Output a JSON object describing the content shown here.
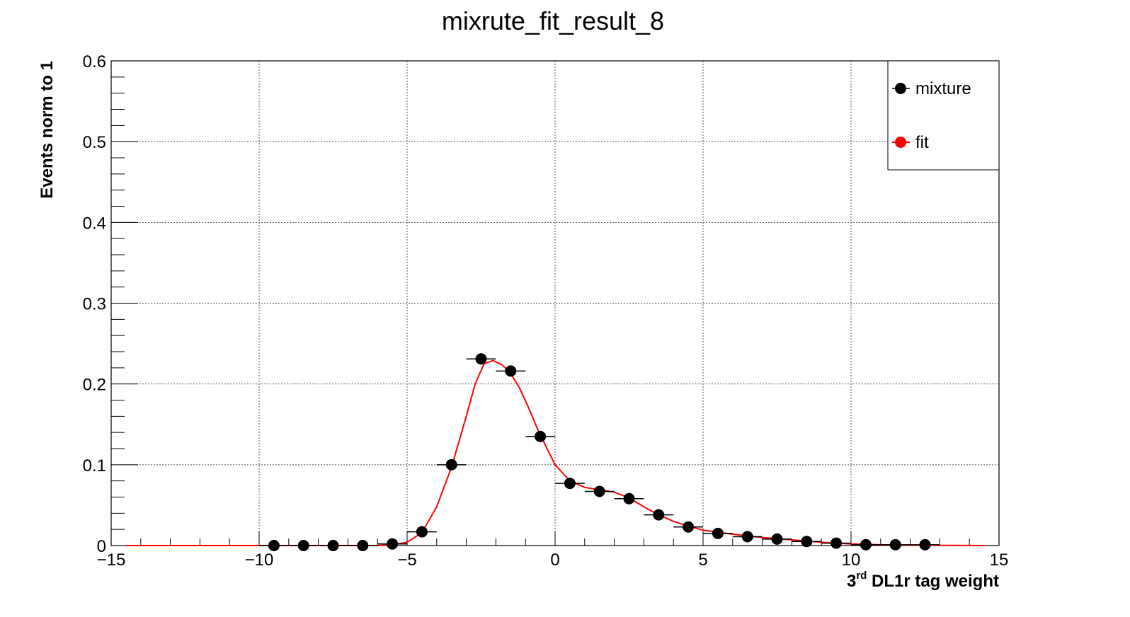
{
  "chart_data": {
    "type": "scatter",
    "title": "mixrute_fit_result_8",
    "xlabel_prefix": "3",
    "xlabel_sup": "rd",
    "xlabel_suffix": " DL1r tag weight",
    "ylabel": "Events norm to 1",
    "xlim": [
      -15,
      15
    ],
    "ylim": [
      0,
      0.6
    ],
    "x_ticks": [
      {
        "v": -15,
        "label": "−15"
      },
      {
        "v": -10,
        "label": "−10"
      },
      {
        "v": -5,
        "label": "−5"
      },
      {
        "v": 0,
        "label": "0"
      },
      {
        "v": 5,
        "label": "5"
      },
      {
        "v": 10,
        "label": "10"
      },
      {
        "v": 15,
        "label": "15"
      }
    ],
    "y_ticks": [
      {
        "v": 0,
        "label": "0"
      },
      {
        "v": 0.1,
        "label": "0.1"
      },
      {
        "v": 0.2,
        "label": "0.2"
      },
      {
        "v": 0.3,
        "label": "0.3"
      },
      {
        "v": 0.4,
        "label": "0.4"
      },
      {
        "v": 0.5,
        "label": "0.5"
      },
      {
        "v": 0.6,
        "label": "0.6"
      }
    ],
    "grid": true,
    "legend_position": "top-right",
    "series": [
      {
        "name": "mixture",
        "type": "points",
        "color": "#000000",
        "bin_half_width": 0.5,
        "x": [
          -9.5,
          -8.5,
          -7.5,
          -6.5,
          -5.5,
          -4.5,
          -3.5,
          -2.5,
          -1.5,
          -0.5,
          0.5,
          1.5,
          2.5,
          3.5,
          4.5,
          5.5,
          6.5,
          7.5,
          8.5,
          9.5,
          10.5,
          11.5,
          12.5
        ],
        "y": [
          0.0,
          0.0,
          0.0,
          0.0,
          0.002,
          0.017,
          0.1,
          0.231,
          0.216,
          0.135,
          0.077,
          0.067,
          0.058,
          0.038,
          0.023,
          0.015,
          0.011,
          0.008,
          0.005,
          0.003,
          0.001,
          0.001,
          0.001
        ]
      },
      {
        "name": "fit",
        "type": "line",
        "color": "#ff0000",
        "x": [
          -14.5,
          -10,
          -7,
          -6,
          -5.5,
          -5,
          -4.5,
          -4,
          -3.5,
          -3,
          -2.7,
          -2.4,
          -2.1,
          -1.8,
          -1.5,
          -1.2,
          -0.9,
          -0.6,
          -0.3,
          0,
          0.5,
          1,
          1.5,
          2,
          2.5,
          3,
          3.5,
          4,
          4.5,
          5,
          6,
          7,
          8,
          9,
          10,
          11,
          12,
          13,
          14.5
        ],
        "y": [
          0,
          0,
          0,
          0,
          0.001,
          0.004,
          0.016,
          0.048,
          0.097,
          0.16,
          0.2,
          0.225,
          0.229,
          0.224,
          0.213,
          0.195,
          0.171,
          0.145,
          0.122,
          0.1,
          0.08,
          0.072,
          0.069,
          0.066,
          0.059,
          0.048,
          0.038,
          0.03,
          0.024,
          0.019,
          0.014,
          0.01,
          0.007,
          0.004,
          0.002,
          0.001,
          0.0005,
          0.0002,
          0
        ]
      }
    ]
  }
}
